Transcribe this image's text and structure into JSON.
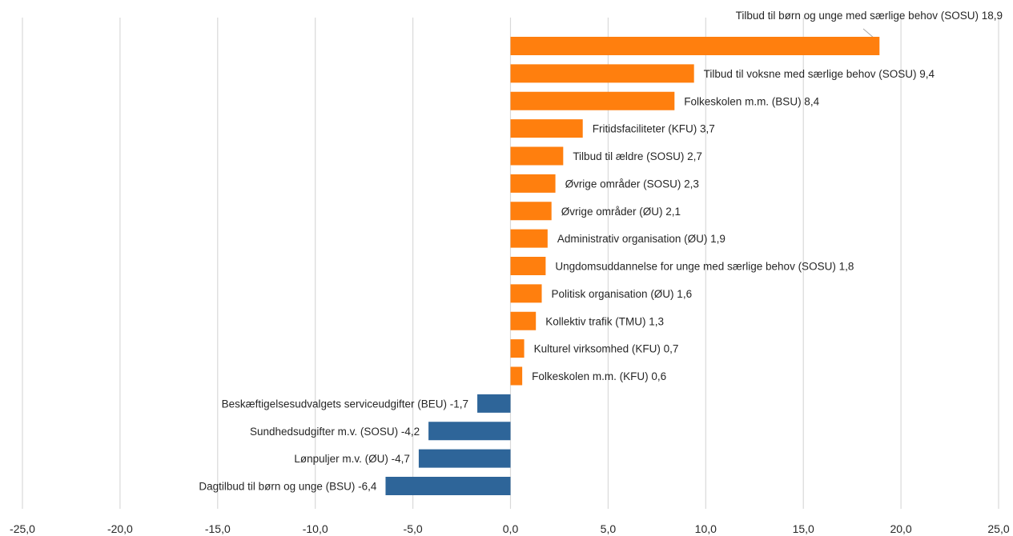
{
  "chart_data": {
    "type": "bar",
    "orientation": "horizontal",
    "xlim": [
      -25,
      25
    ],
    "x_ticks": [
      "-25,0",
      "-20,0",
      "-15,0",
      "-10,0",
      "-5,0",
      "0,0",
      "5,0",
      "10,0",
      "15,0",
      "20,0",
      "25,0"
    ],
    "grid": "vertical",
    "colors": {
      "positive": "#ff7f0e",
      "negative": "#2e6599",
      "grid": "#d9d9d9",
      "leader": "#a6a6a6"
    },
    "categories": [
      "Tilbud til børn og unge med særlige behov (SOSU)",
      "Tilbud til voksne med særlige behov (SOSU)",
      "Folkeskolen m.m. (BSU)",
      "Fritidsfaciliteter (KFU)",
      "Tilbud til ældre (SOSU)",
      "Øvrige områder (SOSU)",
      "Øvrige områder (ØU)",
      "Administrativ organisation (ØU)",
      "Ungdomsuddannelse for unge med særlige behov (SOSU)",
      "Politisk organisation (ØU)",
      "Kollektiv trafik (TMU)",
      "Kulturel virksomhed (KFU)",
      "Folkeskolen m.m. (KFU)",
      "Beskæftigelsesudvalgets serviceudgifter (BEU)",
      "Sundhedsudgifter m.v. (SOSU)",
      "Lønpuljer m.v. (ØU)",
      "Dagtilbud til børn og unge (BSU)"
    ],
    "values": [
      18.9,
      9.4,
      8.4,
      3.7,
      2.7,
      2.3,
      2.1,
      1.9,
      1.8,
      1.6,
      1.3,
      0.7,
      0.6,
      -1.7,
      -4.2,
      -4.7,
      -6.4
    ],
    "data_labels": [
      "Tilbud til børn og unge med særlige behov (SOSU) 18,9",
      "Tilbud til voksne med særlige behov (SOSU) 9,4",
      "Folkeskolen m.m. (BSU) 8,4",
      "Fritidsfaciliteter (KFU) 3,7",
      "Tilbud til ældre (SOSU) 2,7",
      "Øvrige områder (SOSU) 2,3",
      "Øvrige områder (ØU) 2,1",
      "Administrativ organisation (ØU) 1,9",
      "Ungdomsuddannelse for unge med særlige behov (SOSU) 1,8",
      "Politisk organisation (ØU) 1,6",
      "Kollektiv trafik (TMU) 1,3",
      "Kulturel virksomhed (KFU) 0,7",
      "Folkeskolen m.m. (KFU) 0,6",
      "Beskæftigelsesudvalgets serviceudgifter (BEU) -1,7",
      "Sundhedsudgifter m.v. (SOSU) -4,2",
      "Lønpuljer m.v. (ØU)  -4,7",
      "Dagtilbud til børn og unge (BSU) -6,4"
    ],
    "title": "",
    "xlabel": "",
    "ylabel": ""
  }
}
